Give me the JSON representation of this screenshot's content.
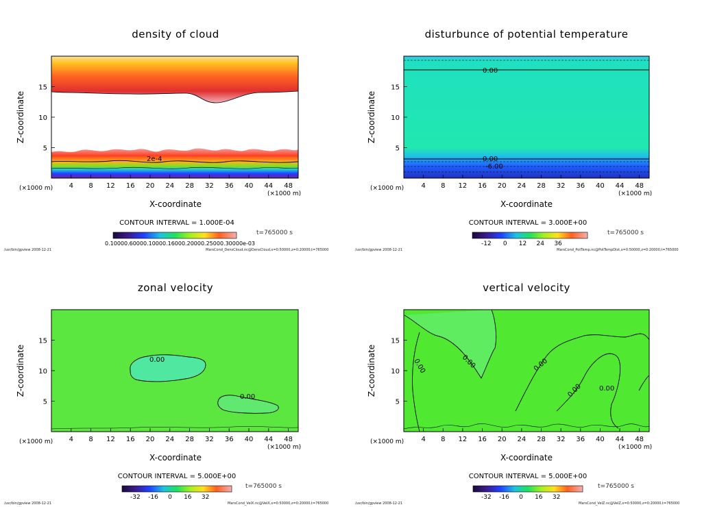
{
  "chart_data": [
    {
      "type": "heatmap",
      "title": "density of cloud",
      "xlabel": "X-coordinate",
      "ylabel": "Z-coordinate",
      "x_unit": "(×1000 m)",
      "y_unit": "(×1000 m)",
      "x_ticks": [
        "4",
        "8",
        "12",
        "16",
        "20",
        "24",
        "28",
        "32",
        "36",
        "40",
        "44",
        "48"
      ],
      "y_ticks": [
        "5",
        "10",
        "15"
      ],
      "xlim": [
        0,
        50
      ],
      "ylim": [
        0,
        20
      ],
      "contour_interval": "CONTOUR INTERVAL = 1.000E-04",
      "contour_labels": [
        "2e-4"
      ],
      "time": "t=765000 s",
      "colorbar_ticks": "0.10000.60000.10000.16000.20000.25000.30000e-03",
      "footer_left": "/usr/bin/gpview  2008-12-21",
      "footer_right": "MarsCond_DensCloud.nc@DensCloud,x=0:50000,z=0:20000,t=765000"
    },
    {
      "type": "heatmap",
      "title": "disturbunce of potential temperature",
      "xlabel": "X-coordinate",
      "ylabel": "Z-coordinate",
      "x_unit": "(×1000 m)",
      "y_unit": "(×1000 m)",
      "x_ticks": [
        "4",
        "8",
        "12",
        "16",
        "20",
        "24",
        "28",
        "32",
        "36",
        "40",
        "44",
        "48"
      ],
      "y_ticks": [
        "5",
        "10",
        "15"
      ],
      "xlim": [
        0,
        50
      ],
      "ylim": [
        0,
        20
      ],
      "contour_interval": "CONTOUR INTERVAL = 3.000E+00",
      "contour_labels": [
        "0.00",
        "0.00",
        "-6.00"
      ],
      "time": "t=765000 s",
      "colorbar_ticks": [
        "-12",
        "0",
        "12",
        "24",
        "36"
      ],
      "footer_left": "/usr/bin/gpview  2008-12-21",
      "footer_right": "MarsCond_PotTemp.nc@PotTempDist,x=0:50000,z=0:20000,t=765000"
    },
    {
      "type": "heatmap",
      "title": "zonal velocity",
      "xlabel": "X-coordinate",
      "ylabel": "Z-coordinate",
      "x_unit": "(×1000 m)",
      "y_unit": "(×1000 m)",
      "x_ticks": [
        "4",
        "8",
        "12",
        "16",
        "20",
        "24",
        "28",
        "32",
        "36",
        "40",
        "44",
        "48"
      ],
      "y_ticks": [
        "5",
        "10",
        "15"
      ],
      "xlim": [
        0,
        50
      ],
      "ylim": [
        0,
        20
      ],
      "contour_interval": "CONTOUR INTERVAL = 5.000E+00",
      "contour_labels": [
        "0.00",
        "0.00"
      ],
      "time": "t=765000 s",
      "colorbar_ticks": [
        "-32",
        "-16",
        "0",
        "16",
        "32"
      ],
      "footer_left": "/usr/bin/gpview  2008-12-21",
      "footer_right": "MarsCond_VelX.nc@VelX,x=0:50000,z=0:20000,t=765000"
    },
    {
      "type": "heatmap",
      "title": "vertical velocity",
      "xlabel": "X-coordinate",
      "ylabel": "Z-coordinate",
      "x_unit": "(×1000 m)",
      "y_unit": "(×1000 m)",
      "x_ticks": [
        "4",
        "8",
        "12",
        "16",
        "20",
        "24",
        "28",
        "32",
        "36",
        "40",
        "44",
        "48"
      ],
      "y_ticks": [
        "5",
        "10",
        "15"
      ],
      "xlim": [
        0,
        50
      ],
      "ylim": [
        0,
        20
      ],
      "contour_interval": "CONTOUR INTERVAL = 5.000E+00",
      "contour_labels": [
        "0.00",
        "0.00",
        "0.00",
        "0.00",
        "0.00"
      ],
      "time": "t=765000 s",
      "colorbar_ticks": [
        "-32",
        "-16",
        "0",
        "16",
        "32"
      ],
      "footer_left": "/usr/bin/gpview  2008-12-21",
      "footer_right": "MarsCond_VelZ.nc@VelZ,x=0:50000,z=0:20000,t=765000"
    }
  ]
}
